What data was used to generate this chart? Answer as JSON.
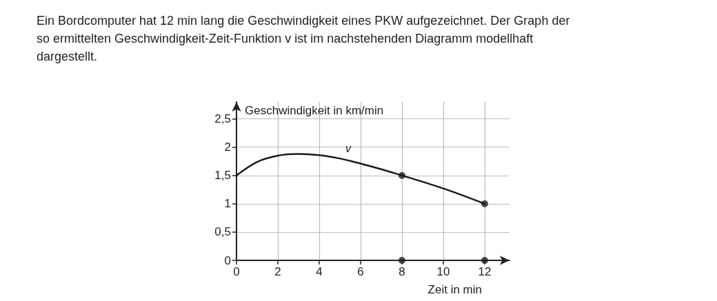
{
  "chart_data": {
    "type": "line",
    "title": "Ein Bordcomputer hat 12 min lang die Geschwindigkeit eines PKW aufgezeichnet. Der Graph der so ermittelten Geschwindigkeit-Zeit-Funktion v ist im nachstehenden Diagramm modellhaft dargestellt.",
    "xlabel": "Zeit in min",
    "ylabel": "Geschwindigkeit in km/min",
    "xlim": [
      0,
      13.2
    ],
    "ylim": [
      0,
      2.8
    ],
    "xticks": [
      0,
      2,
      4,
      6,
      8,
      10,
      12
    ],
    "yticks": [
      0,
      {
        "value": 0.5,
        "label": "0,5"
      },
      1,
      {
        "value": 1.5,
        "label": "1,5"
      },
      2,
      {
        "value": 2.5,
        "label": "2,5"
      }
    ],
    "grid": true,
    "marker": "circle",
    "series": [
      {
        "type": "line",
        "name": "v",
        "color": "#1a1a1a",
        "marker": "none",
        "x": [
          0,
          1,
          2,
          3,
          4,
          5,
          6,
          7,
          8,
          9,
          10,
          11,
          12
        ],
        "values": [
          1.5,
          1.74,
          1.85,
          1.88,
          1.86,
          1.8,
          1.71,
          1.61,
          1.5,
          1.39,
          1.27,
          1.14,
          1
        ]
      },
      {
        "type": "scatter",
        "color": "#1a1a1a",
        "x": [
          8,
          12,
          8,
          12
        ],
        "values": [
          1.5,
          1,
          0,
          0
        ]
      }
    ]
  }
}
